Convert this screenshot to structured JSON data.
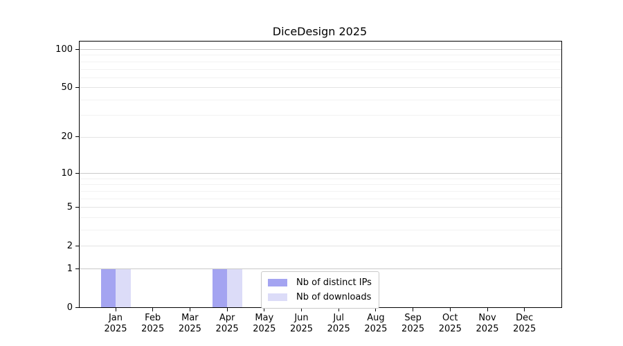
{
  "chart_data": {
    "type": "bar",
    "title": "DiceDesign 2025",
    "categories": [
      "Jan",
      "Feb",
      "Mar",
      "Apr",
      "May",
      "Jun",
      "Jul",
      "Aug",
      "Sep",
      "Oct",
      "Nov",
      "Dec"
    ],
    "category_year": "2025",
    "series": [
      {
        "name": "Nb of distinct IPs",
        "color": "#a4a4f1",
        "values": [
          1,
          0,
          0,
          1,
          0,
          0,
          0,
          0,
          0,
          0,
          0,
          0
        ]
      },
      {
        "name": "Nb of downloads",
        "color": "#dcdcf8",
        "values": [
          1,
          0,
          0,
          1,
          0,
          0,
          0,
          0,
          0,
          0,
          0,
          0
        ]
      }
    ],
    "xlabel": "",
    "ylabel": "",
    "y_scale": "log10(1+y)",
    "y_ticks": [
      0,
      1,
      2,
      5,
      10,
      20,
      50,
      100
    ],
    "y_decade_gridlines": [
      1,
      10,
      100
    ],
    "y_minor_gridlines": [
      3,
      4,
      6,
      7,
      8,
      9,
      30,
      40,
      60,
      70,
      80,
      90
    ],
    "ylim": [
      0,
      114.7
    ],
    "grid": true,
    "legend_position": "lower center inside axes"
  },
  "colors": {
    "bar_distinct_ips": "#a4a4f1",
    "bar_downloads": "#dcdcf8",
    "gridline_decade": "#c9c9c9",
    "gridline_major": "#e3e3e3",
    "gridline_minor": "#f2f2f2",
    "axis": "#000000",
    "text": "#000000",
    "legend_border": "#c9c9c9",
    "background": "#ffffff"
  }
}
